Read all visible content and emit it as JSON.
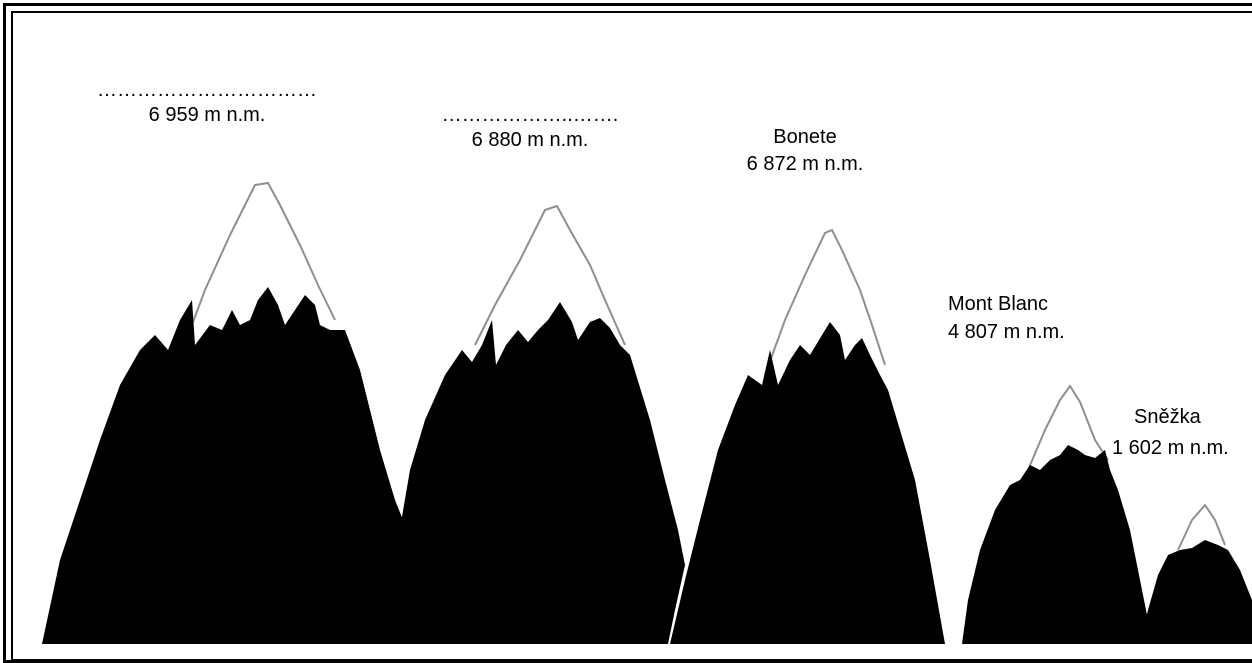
{
  "peaks": [
    {
      "name": "",
      "name_blank": "……………………………",
      "elevation": "6 959  m n.m."
    },
    {
      "name": "",
      "name_blank": "………………..…….",
      "elevation": "6 880 m n.m."
    },
    {
      "name": "Bonete",
      "elevation": "6 872 m n.m."
    },
    {
      "name": "Mont Blanc",
      "elevation": "4 807 m n.m."
    },
    {
      "name": "Sněžka",
      "elevation": "1 602 m n.m."
    }
  ],
  "colors": {
    "mountain": "#000000",
    "snow_outline": "#8a8f98",
    "background": "#ffffff",
    "frame": "#000000"
  }
}
